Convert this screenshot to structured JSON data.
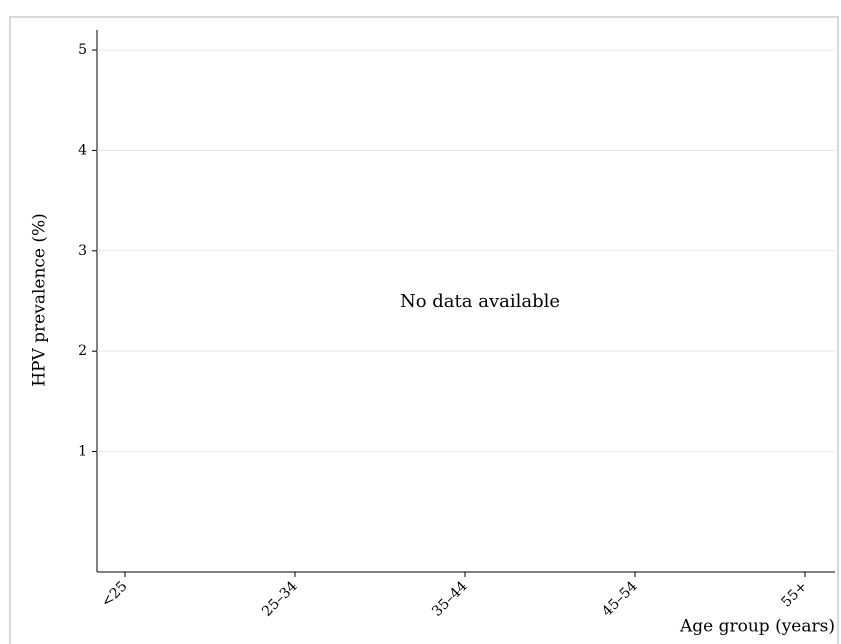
{
  "chart_data": {
    "type": "line",
    "y_label": "HPV prevalence (%)",
    "x_label": "Age group (years)",
    "annotation": "No data available",
    "categories": [
      "<25",
      "25–34",
      "35–44",
      "45–54",
      "55+"
    ],
    "series": [],
    "ylim": [
      -0.2,
      5.2
    ],
    "yticks": [
      1,
      2,
      3,
      4,
      5
    ],
    "grid": true
  }
}
